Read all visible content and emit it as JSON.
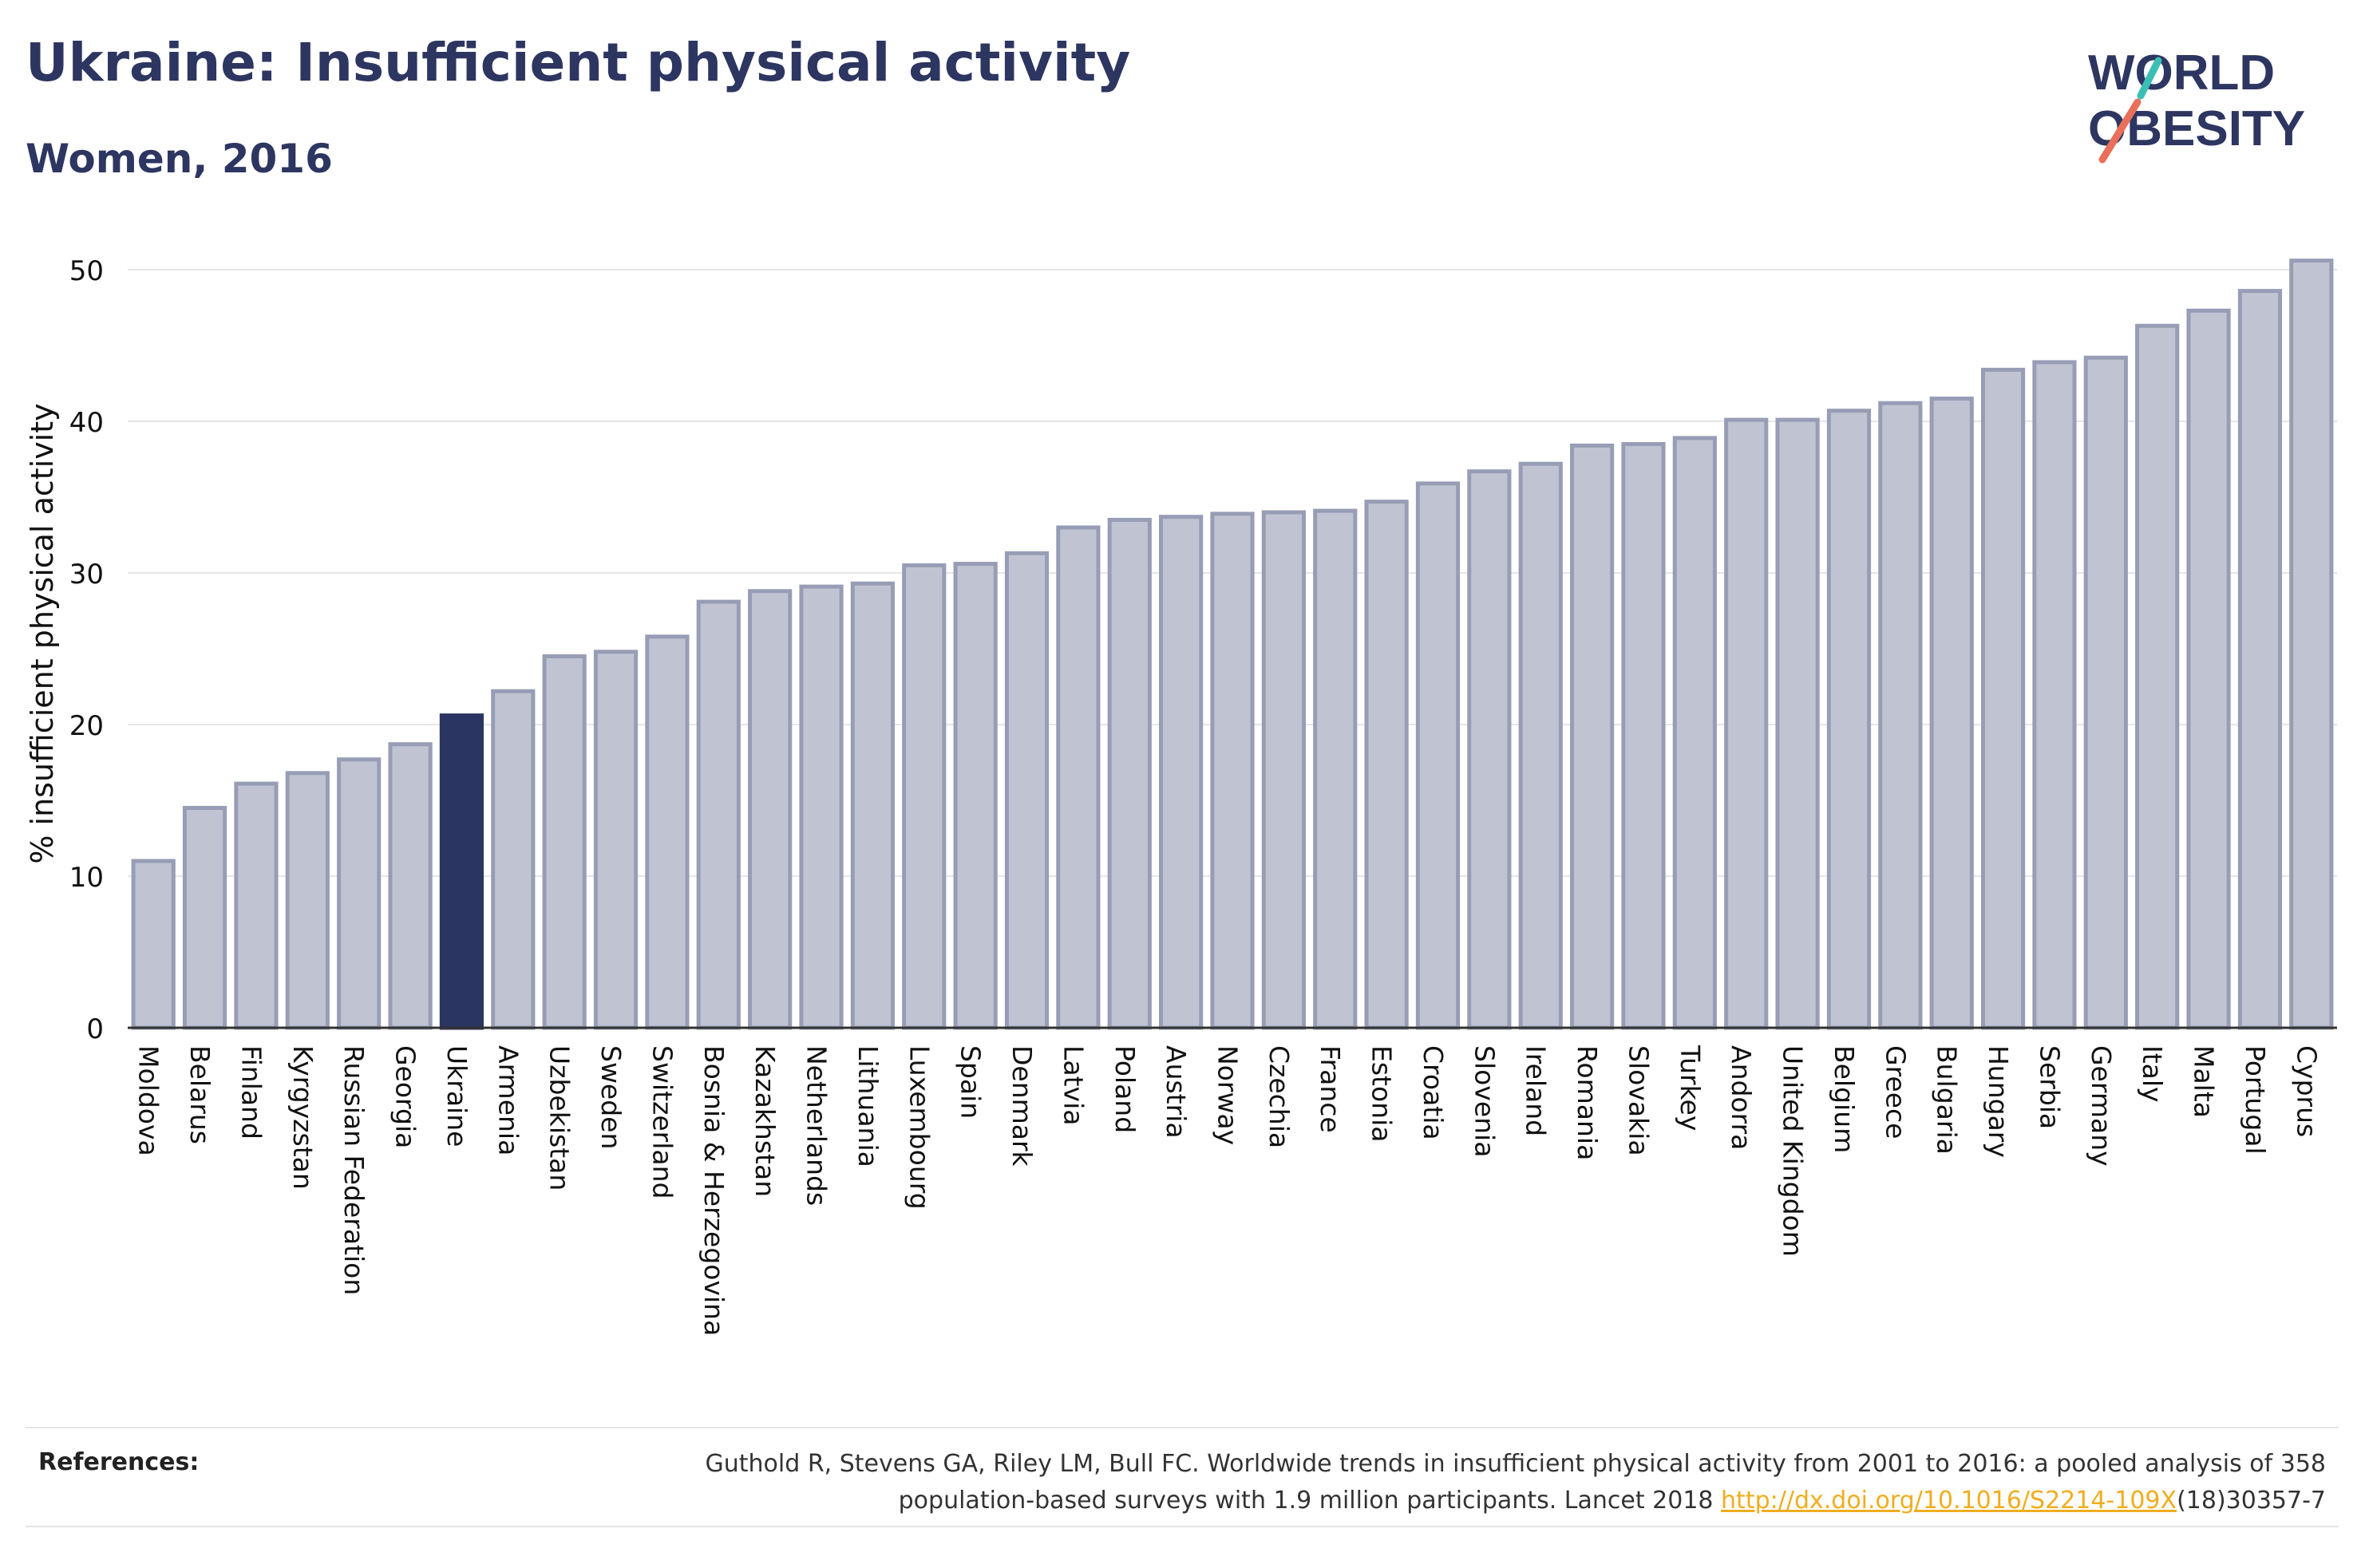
{
  "header": {
    "title": "Ukraine: Insufficient physical activity",
    "subtitle": "Women, 2016"
  },
  "logo": {
    "line1": "WORLD",
    "line2": "OBESITY",
    "colors": {
      "text": "#2d3561",
      "slash_top": "#3bbfb5",
      "slash_bottom": "#e8705a"
    }
  },
  "colors": {
    "bar_fill": "#c0c4d2",
    "bar_stroke": "#989db6",
    "highlight": "#2b3561",
    "text": "#2d3561",
    "grid": "#e6e6e6",
    "link": "#f0ad1e"
  },
  "chart_data": {
    "type": "bar",
    "title": "",
    "ylabel": "% insufficient physical activity",
    "xlabel": "",
    "ylim": [
      0,
      52
    ],
    "yticks": [
      0,
      10,
      20,
      30,
      40,
      50
    ],
    "grid": true,
    "highlight": "Ukraine",
    "categories": [
      "Moldova",
      "Belarus",
      "Finland",
      "Kyrgyzstan",
      "Russian Federation",
      "Georgia",
      "Ukraine",
      "Armenia",
      "Uzbekistan",
      "Sweden",
      "Switzerland",
      "Bosnia & Herzegovina",
      "Kazakhstan",
      "Netherlands",
      "Lithuania",
      "Luxembourg",
      "Spain",
      "Denmark",
      "Latvia",
      "Poland",
      "Austria",
      "Norway",
      "Czechia",
      "France",
      "Estonia",
      "Croatia",
      "Slovenia",
      "Ireland",
      "Romania",
      "Slovakia",
      "Turkey",
      "Andorra",
      "United Kingdom",
      "Belgium",
      "Greece",
      "Bulgaria",
      "Hungary",
      "Serbia",
      "Germany",
      "Italy",
      "Malta",
      "Portugal",
      "Cyprus"
    ],
    "values": [
      11.0,
      14.5,
      16.1,
      16.8,
      17.7,
      18.7,
      20.6,
      22.2,
      24.5,
      24.8,
      25.8,
      28.1,
      28.8,
      29.1,
      29.3,
      30.5,
      30.6,
      31.3,
      33.0,
      33.5,
      33.7,
      33.9,
      34.0,
      34.1,
      34.7,
      35.9,
      36.7,
      37.2,
      38.4,
      38.5,
      38.9,
      40.1,
      40.1,
      40.7,
      41.2,
      41.5,
      43.4,
      43.9,
      44.2,
      46.3,
      47.3,
      48.6,
      50.6
    ]
  },
  "references": {
    "label": "References:",
    "line1": "Guthold R, Stevens GA, Riley LM, Bull FC. Worldwide trends in insufficient physical activity from 2001 to 2016: a pooled analysis of 358",
    "line2_prefix": "population-based surveys with 1.9 million participants. Lancet 2018 ",
    "link_text": "http://dx.doi.org/10.1016/S2214-109X",
    "line2_suffix": "(18)30357-7"
  }
}
